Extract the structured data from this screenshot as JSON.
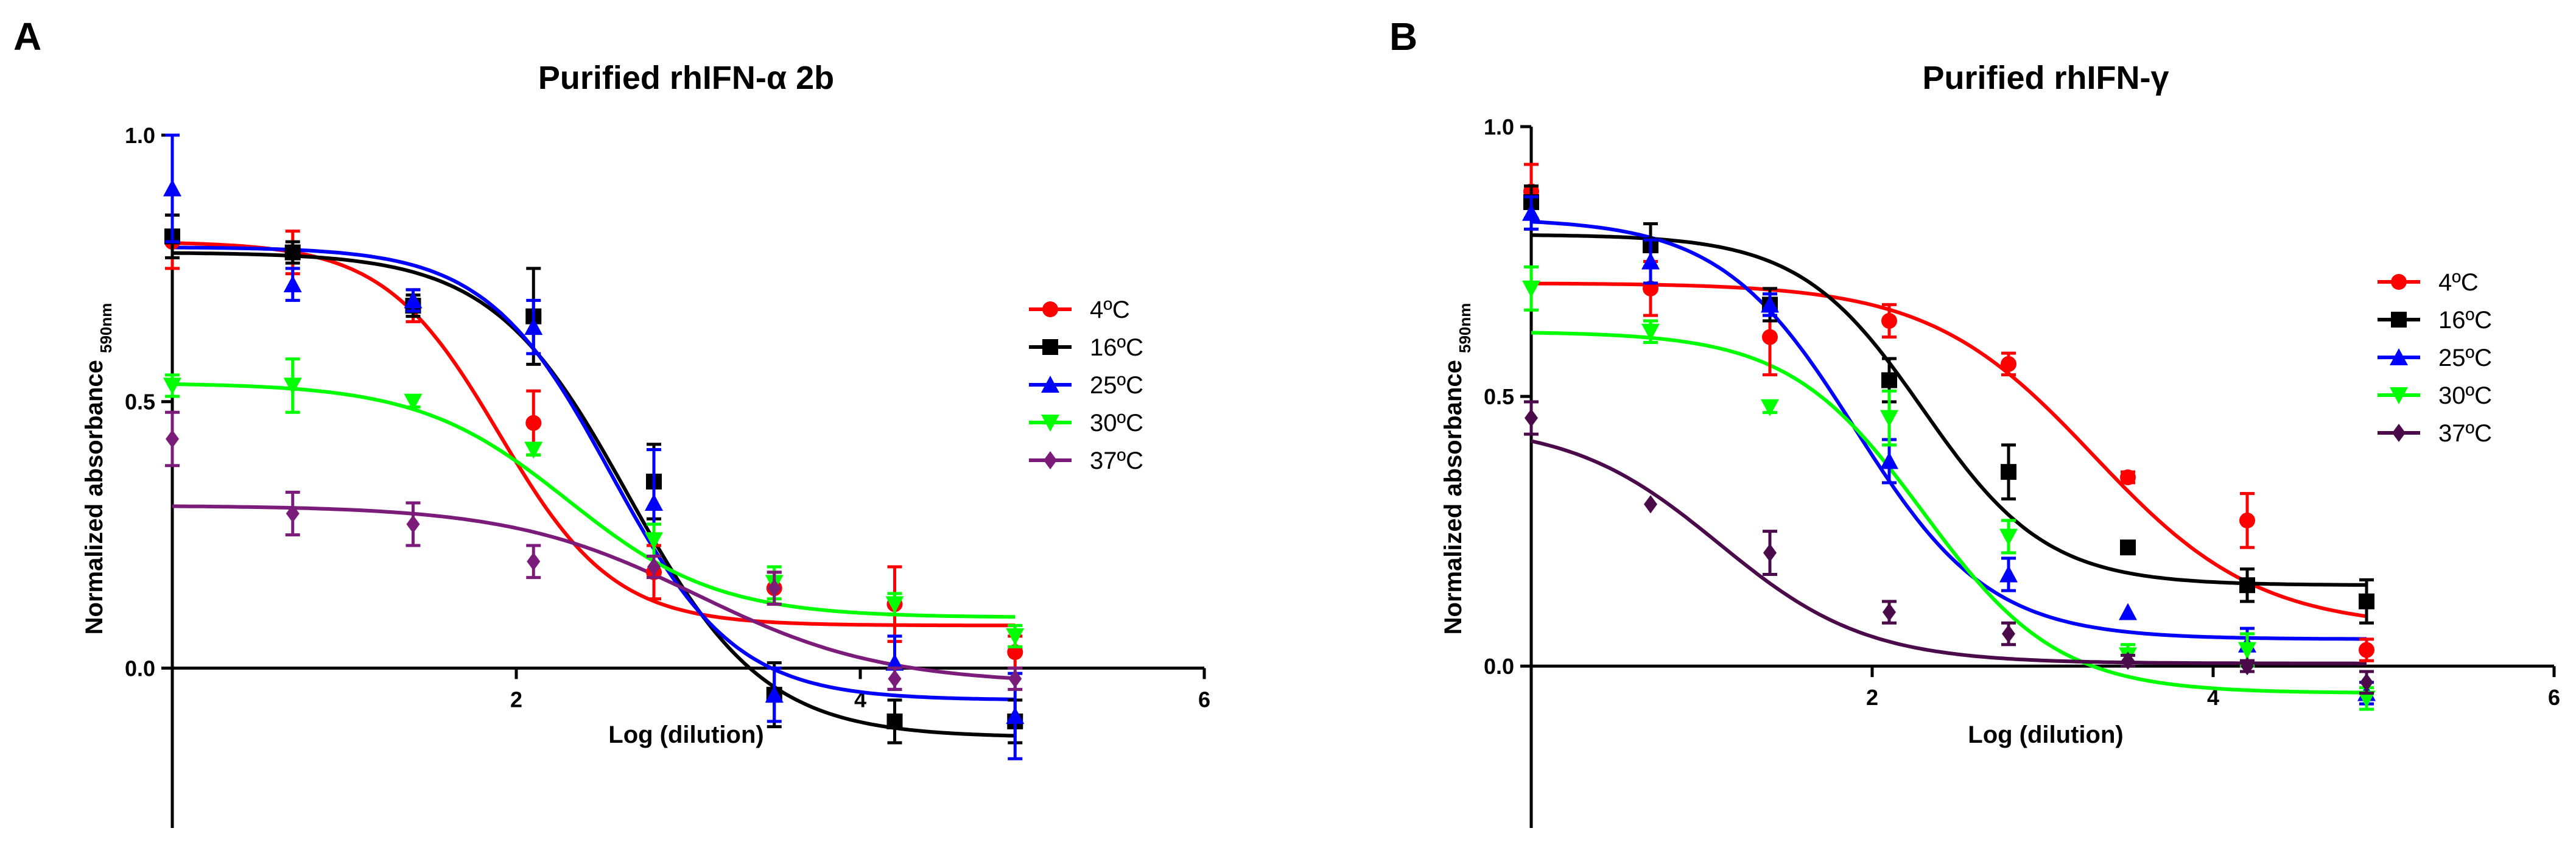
{
  "panels": [
    {
      "letter": "A",
      "title": "Purified rhIFN-α 2b"
    },
    {
      "letter": "B",
      "title": "Purified rhIFN-γ"
    }
  ],
  "axes": {
    "xlabel": "Log (dilution)",
    "ylabel_main": "Normalized absorbance ",
    "ylabel_sub": "590nm"
  },
  "chart_data": [
    {
      "type": "scatter",
      "title": "Purified rhIFN-α 2b",
      "xlabel": "Log (dilution)",
      "ylabel": "Normalized absorbance 590nm",
      "xlim": [
        0,
        6
      ],
      "ylim": [
        -0.3,
        1.0
      ],
      "xticks": [
        2,
        4,
        6
      ],
      "yticks": [
        0.0,
        0.5,
        1.0
      ],
      "ytick_labels": [
        "0.0",
        "0.5",
        "1.0"
      ],
      "legend_position": "right",
      "series": [
        {
          "name": "4ºC",
          "color": "#ff0000",
          "marker": "circle",
          "points": [
            [
              0,
              0.8,
              0.05
            ],
            [
              0.7,
              0.78,
              0.04
            ],
            [
              1.4,
              0.68,
              0.03
            ],
            [
              2.1,
              0.46,
              0.06
            ],
            [
              2.8,
              0.18,
              0.05
            ],
            [
              3.5,
              0.15,
              0.03
            ],
            [
              4.2,
              0.12,
              0.07
            ],
            [
              4.9,
              0.03,
              0.03
            ]
          ],
          "fit": {
            "top": 0.8,
            "bottom": 0.08,
            "logEC50": 1.9,
            "hill": 1.3
          }
        },
        {
          "name": "16ºC",
          "color": "#000000",
          "marker": "square",
          "points": [
            [
              0,
              0.81,
              0.04
            ],
            [
              0.7,
              0.78,
              0.02
            ],
            [
              1.4,
              0.68,
              0.02
            ],
            [
              2.1,
              0.66,
              0.09
            ],
            [
              2.8,
              0.35,
              0.07
            ],
            [
              3.5,
              -0.05,
              0.06
            ],
            [
              4.2,
              -0.1,
              0.04
            ],
            [
              4.9,
              -0.1,
              0.04
            ]
          ],
          "fit": {
            "top": 0.78,
            "bottom": -0.13,
            "logEC50": 2.65,
            "hill": 1.1
          }
        },
        {
          "name": "25ºC",
          "color": "#0000ff",
          "marker": "triangle-up",
          "points": [
            [
              0,
              0.9,
              0.1
            ],
            [
              0.7,
              0.72,
              0.03
            ],
            [
              1.4,
              0.69,
              0.02
            ],
            [
              2.1,
              0.64,
              0.05
            ],
            [
              2.8,
              0.31,
              0.1
            ],
            [
              3.5,
              -0.05,
              0.05
            ],
            [
              4.2,
              0.01,
              0.05
            ],
            [
              4.9,
              -0.09,
              0.08
            ]
          ],
          "fit": {
            "top": 0.79,
            "bottom": -0.06,
            "logEC50": 2.55,
            "hill": 1.2
          }
        },
        {
          "name": "30ºC",
          "color": "#00ff00",
          "marker": "triangle-down",
          "points": [
            [
              0,
              0.53,
              0.02
            ],
            [
              0.7,
              0.53,
              0.05
            ],
            [
              1.4,
              0.5,
              0.01
            ],
            [
              2.1,
              0.41,
              0.01
            ],
            [
              2.8,
              0.24,
              0.03
            ],
            [
              3.5,
              0.16,
              0.03
            ],
            [
              4.2,
              0.12,
              0.02
            ],
            [
              4.9,
              0.06,
              0.02
            ]
          ],
          "fit": {
            "top": 0.535,
            "bottom": 0.095,
            "logEC50": 2.3,
            "hill": 1.0
          }
        },
        {
          "name": "37ºC",
          "color": "#7b1c7b",
          "marker": "diamond",
          "points": [
            [
              0,
              0.43,
              0.05
            ],
            [
              0.7,
              0.29,
              0.04
            ],
            [
              1.4,
              0.27,
              0.04
            ],
            [
              2.1,
              0.2,
              0.03
            ],
            [
              2.8,
              0.19,
              0.02
            ],
            [
              3.5,
              0.15,
              0.03
            ],
            [
              4.2,
              -0.02,
              0.02
            ],
            [
              4.9,
              -0.02,
              0.02
            ]
          ],
          "fit": {
            "top": 0.305,
            "bottom": -0.03,
            "logEC50": 3.05,
            "hill": 0.8
          }
        }
      ]
    },
    {
      "type": "scatter",
      "title": "Purified rhIFN-γ",
      "xlabel": "Log (dilution)",
      "ylabel": "Normalized absorbance 590nm",
      "xlim": [
        0,
        6
      ],
      "ylim": [
        -0.3,
        1.0
      ],
      "xticks": [
        2,
        4,
        6
      ],
      "yticks": [
        0.0,
        0.5,
        1.0
      ],
      "ytick_labels": [
        "0.0",
        "0.5",
        "1.0"
      ],
      "legend_position": "right",
      "series": [
        {
          "name": "4ºC",
          "color": "#ff0000",
          "marker": "circle",
          "points": [
            [
              0,
              0.88,
              0.05
            ],
            [
              0.7,
              0.7,
              0.05
            ],
            [
              1.4,
              0.61,
              0.07
            ],
            [
              2.1,
              0.64,
              0.03
            ],
            [
              2.8,
              0.56,
              0.02
            ],
            [
              3.5,
              0.35,
              0.01
            ],
            [
              4.2,
              0.27,
              0.05
            ],
            [
              4.9,
              0.03,
              0.02
            ]
          ],
          "fit": {
            "top": 0.71,
            "bottom": 0.07,
            "logEC50": 3.3,
            "hill": 0.9
          }
        },
        {
          "name": "16ºC",
          "color": "#000000",
          "marker": "square",
          "points": [
            [
              0,
              0.86,
              0.03
            ],
            [
              0.7,
              0.78,
              0.04
            ],
            [
              1.4,
              0.67,
              0.03
            ],
            [
              2.1,
              0.53,
              0.04
            ],
            [
              2.8,
              0.36,
              0.05
            ],
            [
              3.5,
              0.22,
              0.0
            ],
            [
              4.2,
              0.15,
              0.03
            ],
            [
              4.9,
              0.12,
              0.04
            ]
          ],
          "fit": {
            "top": 0.8,
            "bottom": 0.15,
            "logEC50": 2.3,
            "hill": 1.2
          }
        },
        {
          "name": "25ºC",
          "color": "#0000ff",
          "marker": "triangle-up",
          "points": [
            [
              0,
              0.84,
              0.03
            ],
            [
              0.7,
              0.75,
              0.04
            ],
            [
              1.4,
              0.67,
              0.02
            ],
            [
              2.1,
              0.38,
              0.04
            ],
            [
              2.8,
              0.17,
              0.03
            ],
            [
              3.5,
              0.1,
              0.0
            ],
            [
              4.2,
              0.04,
              0.03
            ],
            [
              4.9,
              -0.05,
              0.02
            ]
          ],
          "fit": {
            "top": 0.83,
            "bottom": 0.05,
            "logEC50": 1.9,
            "hill": 1.1
          }
        },
        {
          "name": "30ºC",
          "color": "#00ff00",
          "marker": "triangle-down",
          "points": [
            [
              0,
              0.7,
              0.04
            ],
            [
              0.7,
              0.62,
              0.02
            ],
            [
              1.4,
              0.48,
              0.01
            ],
            [
              2.1,
              0.46,
              0.05
            ],
            [
              2.8,
              0.24,
              0.03
            ],
            [
              3.5,
              0.02,
              0.02
            ],
            [
              4.2,
              0.03,
              0.03
            ],
            [
              4.9,
              -0.06,
              0.02
            ]
          ],
          "fit": {
            "top": 0.62,
            "bottom": -0.05,
            "logEC50": 2.3,
            "hill": 1.1
          }
        },
        {
          "name": "37ºC",
          "color": "#4b0b4b",
          "marker": "diamond",
          "points": [
            [
              0,
              0.46,
              0.03
            ],
            [
              0.7,
              0.3,
              0.0
            ],
            [
              1.4,
              0.21,
              0.04
            ],
            [
              2.1,
              0.1,
              0.02
            ],
            [
              2.8,
              0.06,
              0.02
            ],
            [
              3.5,
              0.01,
              0.01
            ],
            [
              4.2,
              0.0,
              0.01
            ],
            [
              4.9,
              -0.03,
              0.02
            ]
          ],
          "fit": {
            "top": 0.45,
            "bottom": 0.005,
            "logEC50": 1.1,
            "hill": 1.0
          }
        }
      ]
    }
  ]
}
